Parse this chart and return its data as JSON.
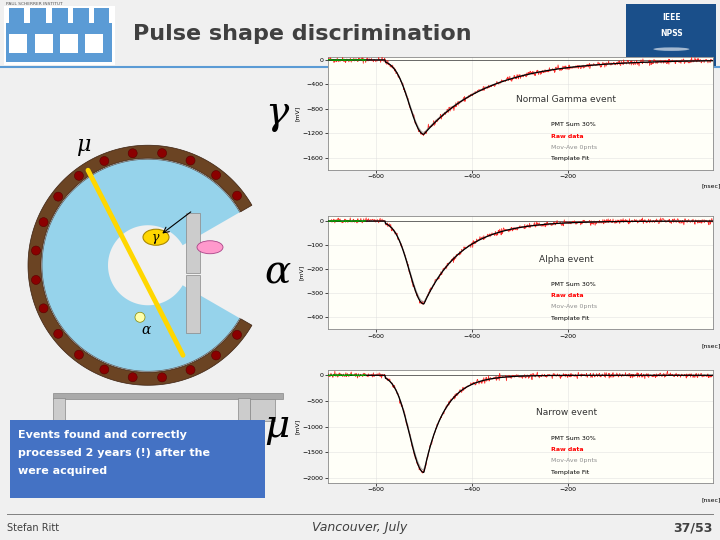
{
  "title": "Pulse shape discrimination",
  "bg_color": "#f0f0f0",
  "header_bg": "#f0f0f0",
  "header_line_color": "#5b9bd5",
  "title_color": "#404040",
  "title_fontsize": 16,
  "psi_logo_text": "PAUL SCHERRER INSTITUT",
  "psi_logo_color": "#5b9bd5",
  "symbol_gamma": "γ",
  "symbol_alpha": "α",
  "symbol_mu_top": "μ",
  "symbol_mu_bottom": "μ",
  "box_text_line1": "Events found and correctly",
  "box_text_line2": "processed 2 years (!) after the",
  "box_text_line3": "were acquired",
  "box_bg": "#4472c4",
  "box_text_color": "#ffffff",
  "plot1_title": "Normal Gamma event",
  "plot2_title": "Alpha event",
  "plot3_title": "Narrow event",
  "legend_pmt": "PMT Sum 30%",
  "legend_raw": "Raw data",
  "legend_mov": "Mov-Ave 0pnts",
  "legend_tmpl": "Template Fit",
  "legend_raw_color": "#ff0000",
  "legend_mov_color": "#909090",
  "legend_tmpl_color": "#000000",
  "legend_pmt_color": "#000000",
  "footer_left": "Stefan Ritt",
  "footer_center": "Vancouver, July",
  "footer_right": "37/53",
  "footer_line_color": "#808080",
  "footer_fontsize": 7,
  "scint_color": "#87ceeb",
  "outer_ring_color": "#6b4423",
  "pmt_dot_color": "#8b0000",
  "yellow_track_color": "#ffd700",
  "gamma_ellipse_color": "#ffd700",
  "pink_ellipse_color": "#ff99cc",
  "alpha_circle_color": "#ffffaa"
}
